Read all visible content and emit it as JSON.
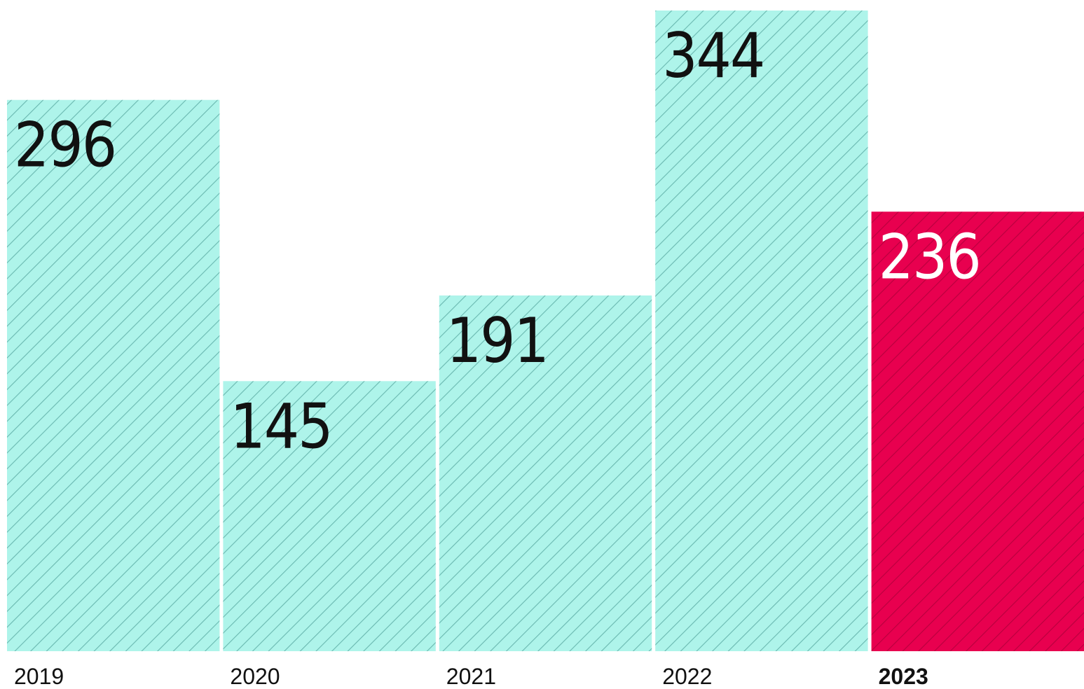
{
  "chart_data": {
    "type": "bar",
    "categories": [
      "2019",
      "2020",
      "2021",
      "2022",
      "2023"
    ],
    "values": [
      296,
      145,
      191,
      344,
      236
    ],
    "value_labels": [
      "296",
      "145",
      "191",
      "344",
      "236"
    ],
    "highlight_index": 4,
    "title": "",
    "xlabel": "",
    "ylabel": "",
    "ylim": [
      0,
      350
    ],
    "grid": false,
    "legend": "none",
    "colors": {
      "bar": "#aef4ea",
      "bar_hatch": "#6ab8b0",
      "highlight": "#e8004f",
      "highlight_hatch": "#b8003d",
      "label_dark": "#111111",
      "label_light": "#ffffff",
      "background": "#ffffff"
    }
  }
}
